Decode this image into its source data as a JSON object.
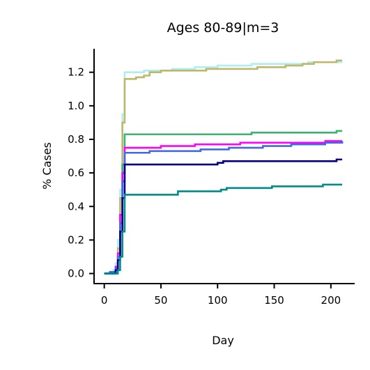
{
  "chart_data": {
    "type": "line",
    "title": "Ages 80-89|m=3",
    "xlabel": "Day",
    "ylabel": "% Cases",
    "xlim": [
      -9,
      221
    ],
    "ylim": [
      -0.06,
      1.34
    ],
    "xticks": [
      0,
      50,
      100,
      150,
      200
    ],
    "xtick_labels": [
      "0",
      "50",
      "100",
      "150",
      "200"
    ],
    "yticks": [
      0.0,
      0.2,
      0.4,
      0.6,
      0.8,
      1.0,
      1.2
    ],
    "ytick_labels": [
      "0.0",
      "0.2",
      "0.4",
      "0.6",
      "0.8",
      "1.0",
      "1.2"
    ],
    "grid": false,
    "legend": "none",
    "line_style": "step",
    "series": [
      {
        "color": "#afeeee",
        "points": [
          [
            0,
            0.0
          ],
          [
            5,
            0.0
          ],
          [
            8,
            0.02
          ],
          [
            10,
            0.06
          ],
          [
            12,
            0.2
          ],
          [
            14,
            0.5
          ],
          [
            16,
            0.95
          ],
          [
            18,
            1.2
          ],
          [
            25,
            1.2
          ],
          [
            35,
            1.21
          ],
          [
            60,
            1.22
          ],
          [
            80,
            1.23
          ],
          [
            100,
            1.24
          ],
          [
            130,
            1.25
          ],
          [
            180,
            1.26
          ],
          [
            210,
            1.26
          ]
        ]
      },
      {
        "color": "#bdb76b",
        "points": [
          [
            0,
            0.0
          ],
          [
            8,
            0.0
          ],
          [
            10,
            0.04
          ],
          [
            12,
            0.15
          ],
          [
            14,
            0.45
          ],
          [
            16,
            0.9
          ],
          [
            18,
            1.16
          ],
          [
            25,
            1.16
          ],
          [
            28,
            1.17
          ],
          [
            35,
            1.18
          ],
          [
            40,
            1.2
          ],
          [
            50,
            1.21
          ],
          [
            90,
            1.22
          ],
          [
            135,
            1.23
          ],
          [
            160,
            1.24
          ],
          [
            175,
            1.25
          ],
          [
            185,
            1.26
          ],
          [
            205,
            1.27
          ],
          [
            210,
            1.27
          ]
        ]
      },
      {
        "color": "#3cb371",
        "points": [
          [
            0,
            0.0
          ],
          [
            8,
            0.0
          ],
          [
            10,
            0.03
          ],
          [
            12,
            0.1
          ],
          [
            14,
            0.35
          ],
          [
            16,
            0.65
          ],
          [
            18,
            0.83
          ],
          [
            60,
            0.83
          ],
          [
            130,
            0.84
          ],
          [
            205,
            0.85
          ],
          [
            210,
            0.85
          ]
        ]
      },
      {
        "color": "#ff00ff",
        "points": [
          [
            0,
            0.0
          ],
          [
            8,
            0.0
          ],
          [
            10,
            0.04
          ],
          [
            12,
            0.12
          ],
          [
            14,
            0.35
          ],
          [
            16,
            0.6
          ],
          [
            18,
            0.75
          ],
          [
            30,
            0.75
          ],
          [
            50,
            0.76
          ],
          [
            80,
            0.77
          ],
          [
            120,
            0.78
          ],
          [
            170,
            0.78
          ],
          [
            195,
            0.79
          ],
          [
            210,
            0.79
          ]
        ]
      },
      {
        "color": "#4169e1",
        "points": [
          [
            0,
            0.0
          ],
          [
            5,
            0.01
          ],
          [
            10,
            0.03
          ],
          [
            12,
            0.1
          ],
          [
            14,
            0.3
          ],
          [
            16,
            0.55
          ],
          [
            18,
            0.72
          ],
          [
            30,
            0.72
          ],
          [
            40,
            0.73
          ],
          [
            85,
            0.74
          ],
          [
            110,
            0.75
          ],
          [
            140,
            0.76
          ],
          [
            165,
            0.77
          ],
          [
            195,
            0.78
          ],
          [
            210,
            0.79
          ]
        ]
      },
      {
        "color": "#000080",
        "points": [
          [
            0,
            0.0
          ],
          [
            8,
            0.0
          ],
          [
            10,
            0.02
          ],
          [
            12,
            0.08
          ],
          [
            14,
            0.25
          ],
          [
            16,
            0.45
          ],
          [
            18,
            0.65
          ],
          [
            85,
            0.65
          ],
          [
            100,
            0.66
          ],
          [
            105,
            0.67
          ],
          [
            200,
            0.67
          ],
          [
            205,
            0.68
          ],
          [
            210,
            0.68
          ]
        ]
      },
      {
        "color": "#008b8b",
        "points": [
          [
            0,
            0.0
          ],
          [
            10,
            0.0
          ],
          [
            12,
            0.02
          ],
          [
            14,
            0.1
          ],
          [
            16,
            0.25
          ],
          [
            18,
            0.47
          ],
          [
            62,
            0.47
          ],
          [
            65,
            0.49
          ],
          [
            100,
            0.49
          ],
          [
            103,
            0.5
          ],
          [
            108,
            0.51
          ],
          [
            145,
            0.51
          ],
          [
            148,
            0.52
          ],
          [
            190,
            0.52
          ],
          [
            193,
            0.53
          ],
          [
            210,
            0.53
          ]
        ]
      }
    ]
  }
}
